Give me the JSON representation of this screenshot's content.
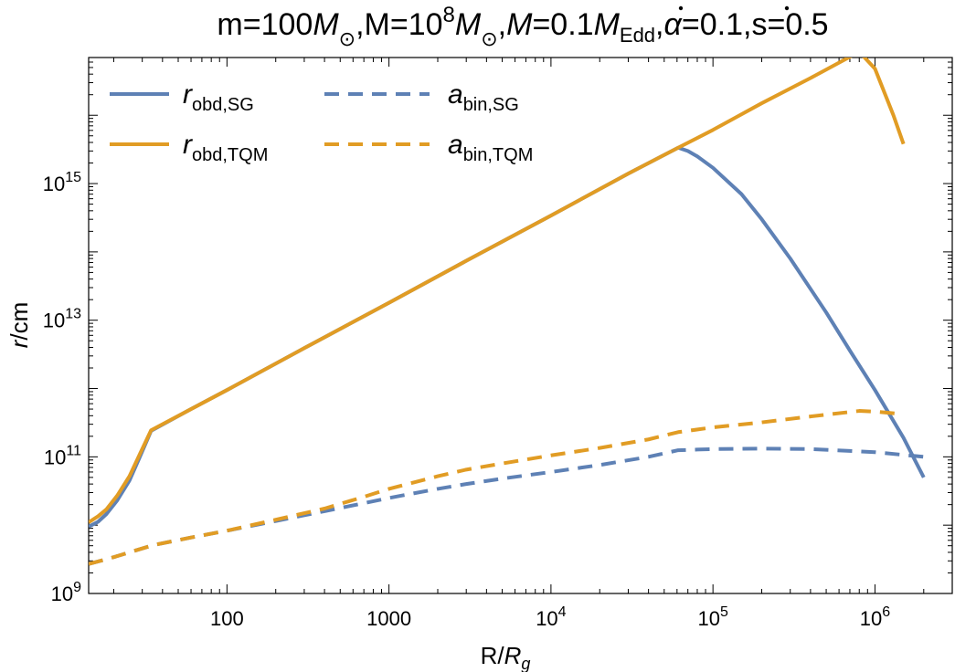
{
  "chart_data": {
    "type": "line",
    "title": "m=100M⊙,M=10⁸M⊙,Ṁ=0.1ṀEdd,α=0.1,s=0.5",
    "title_parts": {
      "p1": "m=100",
      "msun1": "M",
      "sun_sym1": "⊙",
      "p2": ",M=10",
      "exp8": "8",
      "msun2": "M",
      "sun_sym2": "⊙",
      "p3": ",",
      "mdot": "M",
      "p4": "=0.1",
      "mdot_edd": "M",
      "edd_sub": "Edd",
      "p5": ",",
      "alpha": "α",
      "p6": "=0.1,s=0.5"
    },
    "xlabel": "R/Rg",
    "xlabel_parts": {
      "a": "R/",
      "b": "R",
      "sub": "g"
    },
    "ylabel": "r/cm",
    "ylabel_parts": {
      "a": "r",
      "b": "/cm"
    },
    "x_scale": "log",
    "y_scale": "log",
    "xlim": [
      14,
      3000000
    ],
    "ylim": [
      1000000000,
      70000000000000000
    ],
    "x_ticks": [
      {
        "value": 100,
        "label": "100"
      },
      {
        "value": 1000,
        "label": "1000"
      },
      {
        "value": 10000,
        "base": "10",
        "exp": "4"
      },
      {
        "value": 100000,
        "base": "10",
        "exp": "5"
      },
      {
        "value": 1000000,
        "base": "10",
        "exp": "6"
      }
    ],
    "y_ticks": [
      {
        "value": 1000000000,
        "base": "10",
        "exp": "9"
      },
      {
        "value": 100000000000,
        "base": "10",
        "exp": "11"
      },
      {
        "value": 10000000000000,
        "base": "10",
        "exp": "13"
      },
      {
        "value": 1000000000000000,
        "base": "10",
        "exp": "15"
      }
    ],
    "grid": false,
    "legend_position": "top-left",
    "series": [
      {
        "name": "r_obd,SG",
        "label_main": "r",
        "label_sub": "obd,SG",
        "color": "#5e81b5",
        "dash": "solid",
        "x": [
          14,
          16,
          18,
          21,
          25,
          29,
          34,
          60,
          100,
          300,
          1000,
          3000,
          10000,
          30000,
          61000,
          70000,
          80000,
          100000,
          150000,
          200000,
          300000,
          500000,
          700000,
          1000000,
          1500000,
          2000000
        ],
        "y": [
          9500000000.0,
          11200000000.0,
          14500000000.0,
          23000000000.0,
          45000000000.0,
          100000000000.0,
          240000000000.0,
          500000000000.0,
          950000000000.0,
          3900000000000.0,
          18000000000000.0,
          74000000000000.0,
          340000000000000.0,
          1400000000000000.0,
          3350000000000000.0,
          3000000000000000.0,
          2500000000000000.0,
          1700000000000000.0,
          700000000000000.0,
          300000000000000.0,
          80000000000000.0,
          13000000000000.0,
          3600000000000.0,
          950000000000.0,
          190000000000.0,
          50000000000.0
        ]
      },
      {
        "name": "r_obd,TQM",
        "label_main": "r",
        "label_sub": "obd,TQM",
        "color": "#e19c24",
        "dash": "solid",
        "x": [
          14,
          16,
          18,
          21,
          25,
          29,
          34,
          60,
          100,
          300,
          1000,
          3000,
          10000,
          30000,
          61000,
          100000,
          200000,
          400000,
          800000,
          1000000,
          1300000,
          1500000
        ],
        "y": [
          11000000000.0,
          13500000000.0,
          17000000000.0,
          27000000000.0,
          52000000000.0,
          110000000000.0,
          245000000000.0,
          500000000000.0,
          950000000000.0,
          3900000000000.0,
          18000000000000.0,
          74000000000000.0,
          340000000000000.0,
          1400000000000000.0,
          3350000000000000.0,
          6100000000000000.0,
          1.5e+16,
          3.5e+16,
          8.5e+16,
          4.8e+16,
          1e+16,
          3800000000000000.0
        ]
      },
      {
        "name": "a_bin,SG",
        "label_main": "a",
        "label_sub": "bin,SG",
        "color": "#5e81b5",
        "dash": "dashed",
        "x": [
          14,
          20,
          35,
          60,
          100,
          200,
          400,
          700,
          1000,
          2000,
          3000,
          5000,
          10000,
          20000,
          40000,
          61000,
          100000,
          200000,
          400000,
          700000,
          1000000,
          2000000
        ],
        "y": [
          2700000000.0,
          3400000000.0,
          5100000000.0,
          6600000000.0,
          8300000000.0,
          11500000000.0,
          16000000000.0,
          21000000000.0,
          25000000000.0,
          34000000000.0,
          40000000000.0,
          48000000000.0,
          60000000000.0,
          76000000000.0,
          100000000000.0,
          125000000000.0,
          130000000000.0,
          132000000000.0,
          130000000000.0,
          122000000000.0,
          117000000000.0,
          100000000000.0
        ]
      },
      {
        "name": "a_bin,TQM",
        "label_main": "a",
        "label_sub": "bin,TQM",
        "color": "#e19c24",
        "dash": "dashed",
        "x": [
          14,
          20,
          35,
          60,
          100,
          200,
          400,
          700,
          1000,
          2000,
          3000,
          5000,
          10000,
          20000,
          40000,
          61000,
          100000,
          200000,
          400000,
          800000,
          1000000,
          1500000
        ],
        "y": [
          2700000000.0,
          3400000000.0,
          5100000000.0,
          6600000000.0,
          8300000000.0,
          12000000000.0,
          17500000000.0,
          26000000000.0,
          34000000000.0,
          52000000000.0,
          65000000000.0,
          80000000000.0,
          105000000000.0,
          135000000000.0,
          180000000000.0,
          230000000000.0,
          270000000000.0,
          320000000000.0,
          390000000000.0,
          470000000000.0,
          460000000000.0,
          420000000000.0
        ]
      }
    ]
  }
}
